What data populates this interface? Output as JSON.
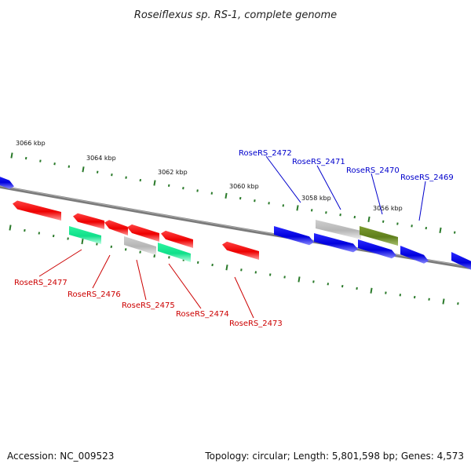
{
  "title": "Roseiflexus sp. RS-1, complete genome",
  "accession": "Accession: NC_009523",
  "summary": "Topology: circular; Length: 5,801,598 bp; Genes: 4,573",
  "colors": {
    "reverse_gene": "#ff1a1a",
    "forward_gene": "#1010ee",
    "rna_gene": "#22ee99",
    "pseudo_gene": "#bdbdbd",
    "highlight_gene": "#6b8e23",
    "ticks": "#2a7a2a",
    "axis": "#7d7d7d",
    "reverse_label": "#cc0000",
    "forward_label": "#0000cc"
  },
  "scale": {
    "unit": "kbp",
    "ticks": [
      {
        "value": 3066,
        "label": "3066 kbp"
      },
      {
        "value": 3064,
        "label": "3064 kbp"
      },
      {
        "value": 3062,
        "label": "3062 kbp"
      },
      {
        "value": 3060,
        "label": "3060 kbp"
      },
      {
        "value": 3058,
        "label": "3058 kbp"
      },
      {
        "value": 3056,
        "label": "3056 kbp"
      }
    ]
  },
  "labels": [
    {
      "id": "2472",
      "text": "RoseRS_2472",
      "strand": "forward"
    },
    {
      "id": "2471",
      "text": "RoseRS_2471",
      "strand": "forward"
    },
    {
      "id": "2470",
      "text": "RoseRS_2470",
      "strand": "forward"
    },
    {
      "id": "2469",
      "text": "RoseRS_2469",
      "strand": "forward"
    },
    {
      "id": "2477",
      "text": "RoseRS_2477",
      "strand": "reverse"
    },
    {
      "id": "2476",
      "text": "RoseRS_2476",
      "strand": "reverse"
    },
    {
      "id": "2475",
      "text": "RoseRS_2475",
      "strand": "reverse"
    },
    {
      "id": "2474",
      "text": "RoseRS_2474",
      "strand": "reverse"
    },
    {
      "id": "2473",
      "text": "RoseRS_2473",
      "strand": "reverse"
    }
  ]
}
